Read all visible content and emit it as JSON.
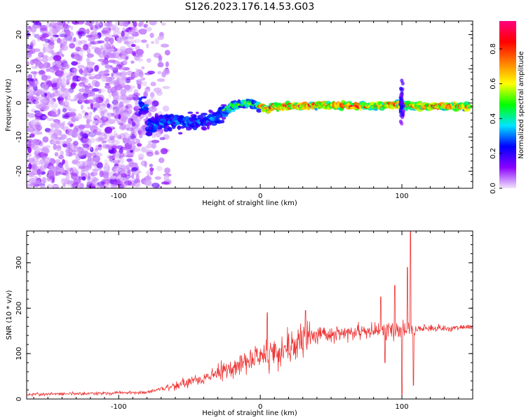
{
  "title": "S126.2023.176.14.53.G03",
  "chart_data": [
    {
      "type": "heatmap",
      "xlabel": "Height of straight line (km)",
      "ylabel": "Frequency (Hz)",
      "xlim": [
        -165,
        150
      ],
      "ylim": [
        -25,
        24
      ],
      "xticks": [
        -100,
        0,
        100
      ],
      "yticks": [
        -20,
        -10,
        0,
        10,
        20
      ],
      "colorbar": {
        "label": "Normalized spectral amplitude",
        "range": [
          0,
          0.96
        ],
        "ticks": [
          "0.0",
          "0.2",
          "0.4",
          "0.6",
          "0.8"
        ],
        "colormap": [
          "#f2e6fa",
          "#8a00ff",
          "#0000ff",
          "#00e5ff",
          "#00ff00",
          "#ffff00",
          "#ff8000",
          "#ff0000",
          "#ff0080"
        ]
      },
      "ridge": [
        {
          "x": -80,
          "y": -7
        },
        {
          "x": -60,
          "y": -5
        },
        {
          "x": -45,
          "y": -6
        },
        {
          "x": -30,
          "y": -4
        },
        {
          "x": -20,
          "y": -1
        },
        {
          "x": -10,
          "y": 0
        },
        {
          "x": -3,
          "y": -0.5
        },
        {
          "x": 5,
          "y": -2
        },
        {
          "x": 10,
          "y": -1
        },
        {
          "x": 20,
          "y": -1
        },
        {
          "x": 40,
          "y": -0.7
        },
        {
          "x": 60,
          "y": -0.7
        },
        {
          "x": 80,
          "y": -0.9
        },
        {
          "x": 95,
          "y": -0.5
        },
        {
          "x": 105,
          "y": -0.8
        },
        {
          "x": 120,
          "y": -1
        },
        {
          "x": 148,
          "y": -1
        }
      ]
    },
    {
      "type": "line",
      "xlabel": "Height of straight line (km)",
      "ylabel": "SNR (10 * v/v)",
      "xlim": [
        -165,
        150
      ],
      "ylim": [
        0,
        370
      ],
      "xticks": [
        -100,
        0,
        100
      ],
      "yticks": [
        0,
        100,
        200,
        300
      ],
      "color": "#ee3333",
      "trend": [
        {
          "x": -165,
          "y": 10
        },
        {
          "x": -120,
          "y": 12
        },
        {
          "x": -80,
          "y": 15
        },
        {
          "x": -60,
          "y": 30
        },
        {
          "x": -40,
          "y": 45
        },
        {
          "x": -20,
          "y": 70
        },
        {
          "x": 0,
          "y": 95
        },
        {
          "x": 20,
          "y": 115
        },
        {
          "x": 30,
          "y": 130
        },
        {
          "x": 40,
          "y": 140
        },
        {
          "x": 60,
          "y": 145
        },
        {
          "x": 80,
          "y": 150
        },
        {
          "x": 100,
          "y": 150
        },
        {
          "x": 110,
          "y": 155
        },
        {
          "x": 150,
          "y": 158
        }
      ],
      "spikes": [
        {
          "x": 5,
          "y": 190
        },
        {
          "x": 32,
          "y": 195
        },
        {
          "x": 85,
          "y": 225
        },
        {
          "x": 88,
          "y": 80
        },
        {
          "x": 95,
          "y": 250
        },
        {
          "x": 100,
          "y": 10
        },
        {
          "x": 104,
          "y": 290
        },
        {
          "x": 106,
          "y": 370
        },
        {
          "x": 108,
          "y": 30
        }
      ]
    }
  ]
}
